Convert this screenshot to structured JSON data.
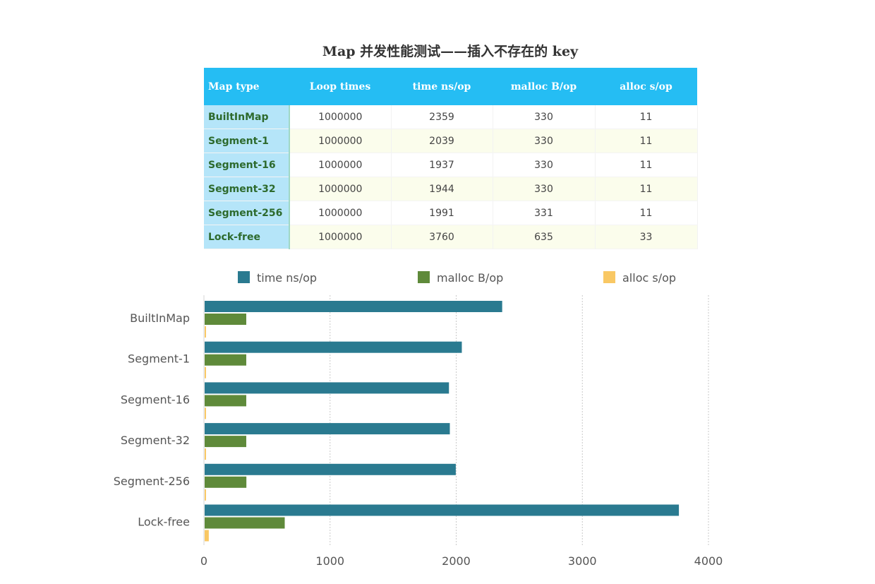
{
  "title": "Map 并发性能测试——插入不存在的 key",
  "table": {
    "headers": [
      "Map type",
      "Loop times",
      "time ns/op",
      "malloc B/op",
      "alloc s/op"
    ],
    "rows": [
      [
        "BuiltInMap",
        "1000000",
        "2359",
        "330",
        "11"
      ],
      [
        "Segment-1",
        "1000000",
        "2039",
        "330",
        "11"
      ],
      [
        "Segment-16",
        "1000000",
        "1937",
        "330",
        "11"
      ],
      [
        "Segment-32",
        "1000000",
        "1944",
        "330",
        "11"
      ],
      [
        "Segment-256",
        "1000000",
        "1991",
        "331",
        "11"
      ],
      [
        "Lock-free",
        "1000000",
        "3760",
        "635",
        "33"
      ]
    ]
  },
  "chart_data": {
    "type": "bar",
    "orientation": "horizontal",
    "categories": [
      "BuiltInMap",
      "Segment-1",
      "Segment-16",
      "Segment-32",
      "Segment-256",
      "Lock-free"
    ],
    "series": [
      {
        "name": "time ns/op",
        "values": [
          2359,
          2039,
          1937,
          1944,
          1991,
          3760
        ],
        "color": "#2a7a90"
      },
      {
        "name": "malloc B/op",
        "values": [
          330,
          330,
          330,
          330,
          331,
          635
        ],
        "color": "#5f8a3a"
      },
      {
        "name": "alloc s/op",
        "values": [
          11,
          11,
          11,
          11,
          11,
          33
        ],
        "color": "#f9c864"
      }
    ],
    "xlim": [
      0,
      4000
    ],
    "xticks": [
      "0",
      "1000",
      "2000",
      "3000",
      "4000"
    ],
    "grid": "vertical dotted",
    "legend": "top"
  }
}
